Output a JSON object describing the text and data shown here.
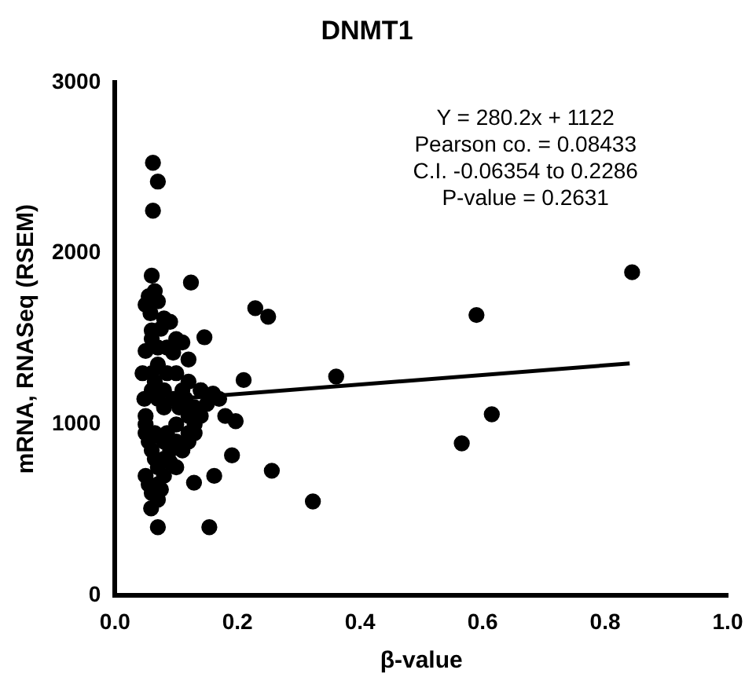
{
  "chart_data": {
    "type": "scatter",
    "title": "DNMT1",
    "xlabel": "β-value",
    "ylabel": "mRNA, RNASeq (RSEM)",
    "xlim": [
      0,
      1
    ],
    "xticks": [
      {
        "value": 0,
        "label": "0.0"
      },
      {
        "value": 0.2,
        "label": "0.2"
      },
      {
        "value": 0.4,
        "label": "0.4"
      },
      {
        "value": 0.6,
        "label": "0.6"
      },
      {
        "value": 0.8,
        "label": "0.8"
      },
      {
        "value": 1,
        "label": "1.0"
      }
    ],
    "ylim": [
      0,
      3000
    ],
    "yticks": [
      0,
      1000,
      2000,
      3000
    ],
    "grid": false,
    "legend": false,
    "annotations": [
      "Y = 280.2x + 1122",
      "Pearson co. = 0.08433",
      "C.I. -0.06354 to 0.2286",
      "P-value = 0.2631"
    ],
    "series": [
      {
        "color": "#000000",
        "marker": "circle",
        "x": [
          0.062,
          0.07,
          0.062,
          0.124,
          0.229,
          0.25,
          0.21,
          0.256,
          0.323,
          0.154,
          0.07,
          0.059,
          0.162,
          0.129,
          0.191,
          0.197,
          0.146,
          0.361,
          0.59,
          0.844,
          0.615,
          0.566,
          0.06,
          0.065,
          0.055,
          0.05,
          0.058,
          0.07,
          0.08,
          0.075,
          0.09,
          0.1,
          0.085,
          0.095,
          0.11,
          0.12,
          0.05,
          0.045,
          0.048,
          0.05,
          0.06,
          0.065,
          0.07,
          0.08,
          0.085,
          0.095,
          0.105,
          0.11,
          0.115,
          0.12,
          0.13,
          0.14,
          0.16,
          0.17,
          0.18,
          0.05,
          0.055,
          0.065,
          0.08,
          0.085,
          0.1,
          0.12,
          0.13,
          0.14,
          0.15,
          0.06,
          0.065,
          0.07,
          0.08,
          0.09,
          0.1,
          0.11,
          0.12,
          0.13,
          0.05,
          0.055,
          0.06,
          0.07,
          0.08,
          0.09,
          0.1,
          0.11,
          0.06,
          0.07,
          0.05,
          0.08,
          0.06,
          0.07,
          0.1,
          0.12,
          0.14,
          0.06,
          0.07,
          0.075
        ],
        "values": [
          2530,
          2420,
          2250,
          1830,
          1680,
          1630,
          1260,
          730,
          550,
          400,
          400,
          510,
          700,
          660,
          820,
          1020,
          1510,
          1280,
          1640,
          1890,
          1060,
          890,
          1870,
          1780,
          1750,
          1700,
          1650,
          1720,
          1620,
          1560,
          1600,
          1500,
          1450,
          1420,
          1480,
          1380,
          1430,
          1300,
          1150,
          1050,
          1200,
          1250,
          1150,
          1200,
          1300,
          1150,
          1100,
          1200,
          1150,
          1050,
          1100,
          1200,
          1180,
          1150,
          1050,
          950,
          900,
          950,
          900,
          950,
          1000,
          950,
          1000,
          1050,
          1120,
          850,
          800,
          750,
          800,
          850,
          900,
          850,
          900,
          950,
          700,
          650,
          600,
          650,
          700,
          780,
          750,
          850,
          1300,
          1350,
          1000,
          1100,
          1550,
          1450,
          1300,
          1250,
          1200,
          1500,
          560,
          620
        ]
      },
      {
        "type": "line",
        "color": "#000000",
        "marker": "none",
        "x": [
          0.05,
          0.84
        ],
        "values": [
          1136,
          1357
        ]
      }
    ]
  }
}
